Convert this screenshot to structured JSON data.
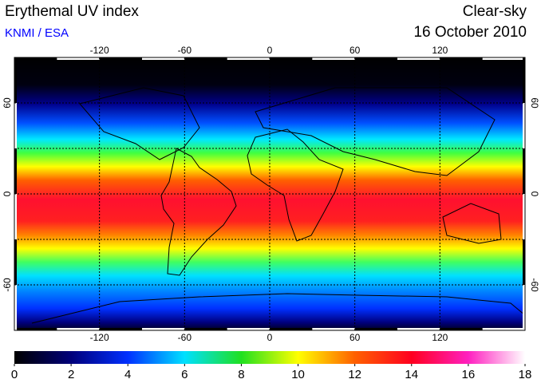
{
  "header": {
    "title": "Erythemal UV index",
    "source": "KNMI / ESA",
    "condition": "Clear-sky",
    "date": "16 October 2010"
  },
  "map": {
    "xlim": [
      -180,
      180
    ],
    "ylim": [
      -90,
      90
    ],
    "xticks": [
      -120,
      -60,
      0,
      60,
      120
    ],
    "yticks": [
      -60,
      0,
      60
    ],
    "grid": true
  },
  "colorbar": {
    "clim": [
      0,
      18
    ],
    "ticks": [
      0,
      2,
      4,
      6,
      8,
      10,
      12,
      14,
      16,
      18
    ],
    "colors": [
      "#000000",
      "#00007a",
      "#0030ff",
      "#00e0ff",
      "#20e020",
      "#ffff00",
      "#ff6000",
      "#ff0020",
      "#ff20c0",
      "#ffffff"
    ]
  }
}
